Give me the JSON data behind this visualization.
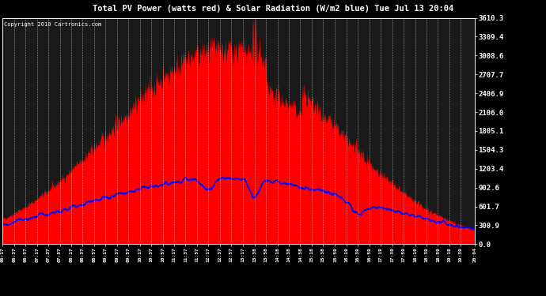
{
  "title": "Total PV Power (watts red) & Solar Radiation (W/m2 blue) Tue Jul 13 20:04",
  "copyright_text": "Copyright 2010 Cartronics.com",
  "background_color": "#000000",
  "plot_bg_color": "#1a1a1a",
  "grid_color": "#aaaaaa",
  "title_color": "#ffffff",
  "ytick_labels": [
    "0.0",
    "300.9",
    "601.7",
    "902.6",
    "1203.4",
    "1504.3",
    "1805.1",
    "2106.0",
    "2406.9",
    "2707.7",
    "3008.6",
    "3309.4",
    "3610.3"
  ],
  "ytick_values": [
    0.0,
    300.9,
    601.7,
    902.6,
    1203.4,
    1504.3,
    1805.1,
    2106.0,
    2406.9,
    2707.7,
    3008.6,
    3309.4,
    3610.3
  ],
  "ymax": 3610.3,
  "ymin": 0.0,
  "pv_color": "#ff0000",
  "solar_color": "#0000ff",
  "orange_color": "#ff8800",
  "xtick_labels": [
    "06:17",
    "06:37",
    "06:57",
    "07:17",
    "07:37",
    "07:57",
    "08:17",
    "08:37",
    "08:57",
    "09:17",
    "09:37",
    "09:57",
    "10:17",
    "10:37",
    "10:57",
    "11:17",
    "11:37",
    "11:57",
    "12:17",
    "12:37",
    "12:57",
    "13:17",
    "13:38",
    "13:58",
    "14:18",
    "14:38",
    "14:58",
    "15:18",
    "15:38",
    "15:59",
    "16:19",
    "16:39",
    "16:59",
    "17:19",
    "17:39",
    "17:59",
    "18:19",
    "18:39",
    "18:59",
    "19:19",
    "19:39",
    "20:04"
  ]
}
